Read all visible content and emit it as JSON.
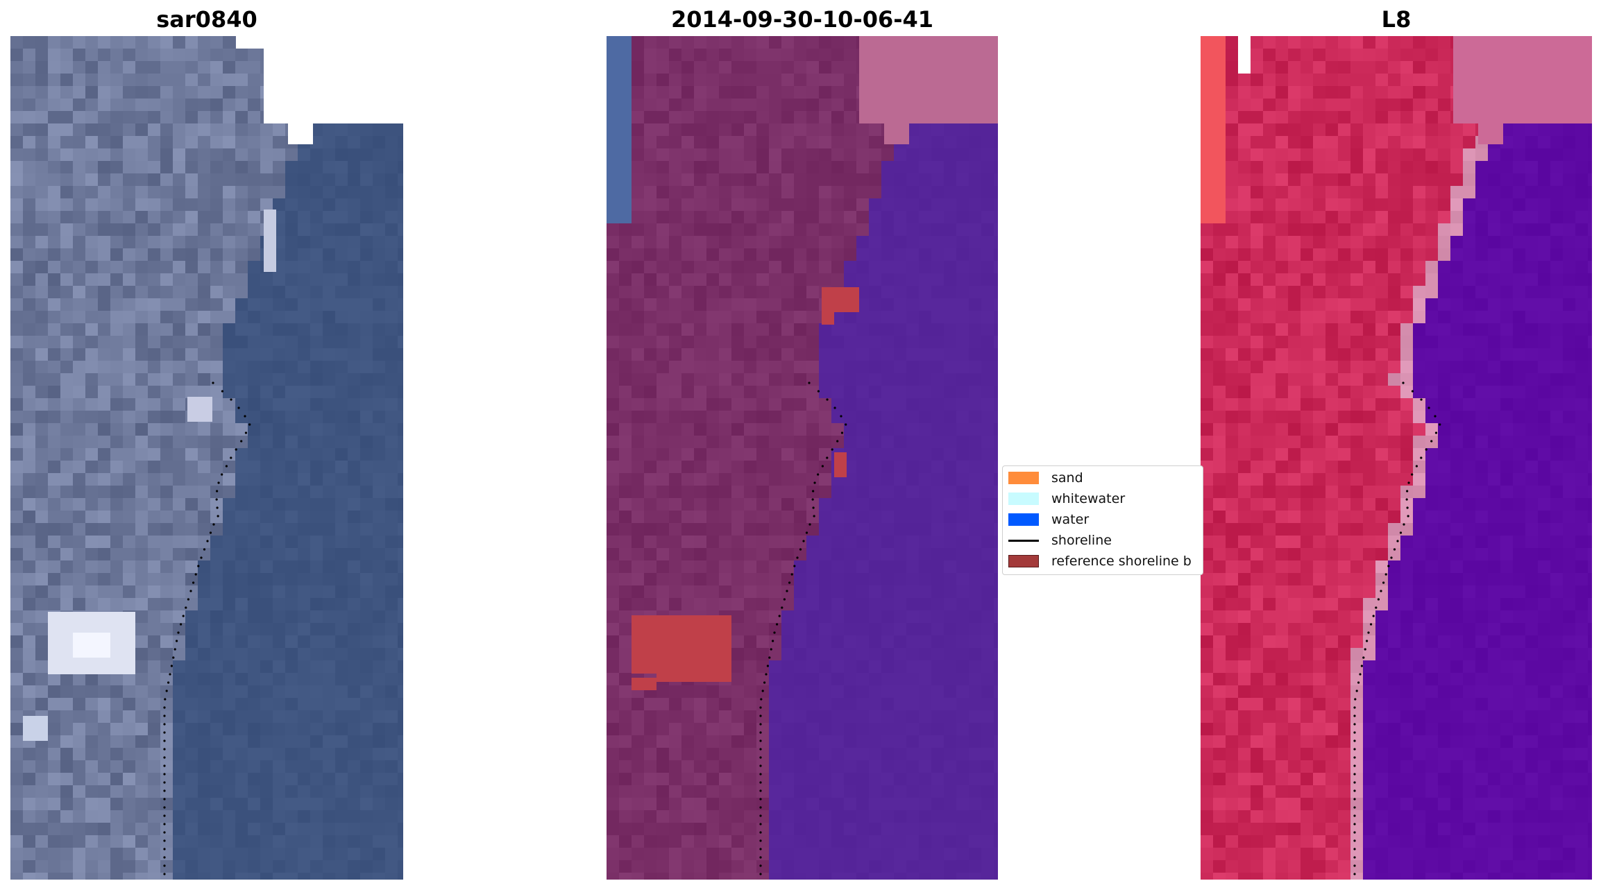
{
  "panels": {
    "left": {
      "title": "sar0840"
    },
    "middle": {
      "title": "2014-09-30-10-06-41"
    },
    "right": {
      "title": "L8"
    }
  },
  "legend": {
    "items": [
      {
        "label": "sand",
        "color": "#ff8c3a",
        "kind": "patch"
      },
      {
        "label": "whitewater",
        "color": "#c8fbff",
        "kind": "patch"
      },
      {
        "label": "water",
        "color": "#0059ff",
        "kind": "patch"
      },
      {
        "label": "shoreline",
        "color": "#000000",
        "kind": "line"
      },
      {
        "label": "reference shoreline b",
        "color": "#a33a3a",
        "kind": "patch"
      }
    ]
  },
  "colors": {
    "rgb_land": "#6f7a9c",
    "rgb_water": "#3f5580",
    "class_land": "#7a2f67",
    "class_water": "#56259a",
    "class_buffer": "#bb6a93",
    "class_reference": "#c04049",
    "nir_land": "#cc2a5a",
    "nir_water": "#5e0aa4",
    "nir_beach": "#d891b1"
  },
  "icons": [
    "shoreline-dot"
  ]
}
